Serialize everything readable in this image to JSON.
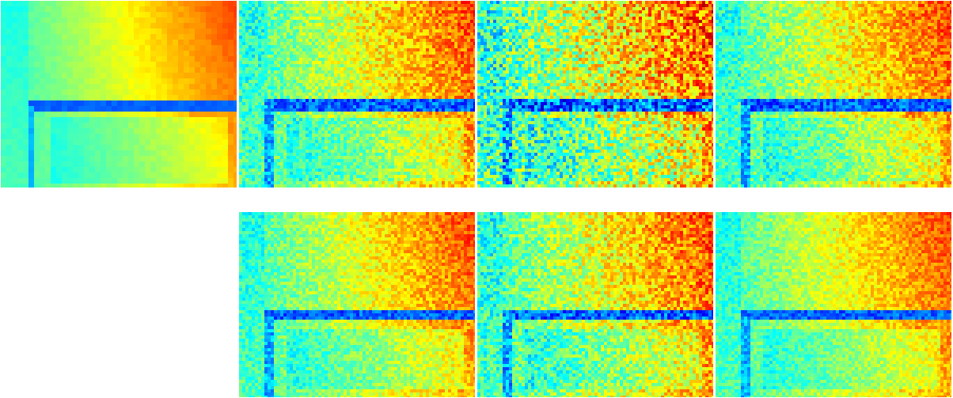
{
  "figure": {
    "colormap": "jet",
    "panels": [
      {
        "id": "row1-col1",
        "noise": 0.1,
        "smooth": true
      },
      {
        "id": "row1-col2",
        "noise": 0.55,
        "smooth": false
      },
      {
        "id": "row1-col3",
        "noise": 0.95,
        "smooth": false
      },
      {
        "id": "row1-col4",
        "noise": 0.55,
        "smooth": false
      },
      {
        "id": "row2-col2",
        "noise": 0.45,
        "smooth": false
      },
      {
        "id": "row2-col3",
        "noise": 0.65,
        "smooth": false
      },
      {
        "id": "row2-col4",
        "noise": 0.4,
        "smooth": false
      }
    ]
  }
}
